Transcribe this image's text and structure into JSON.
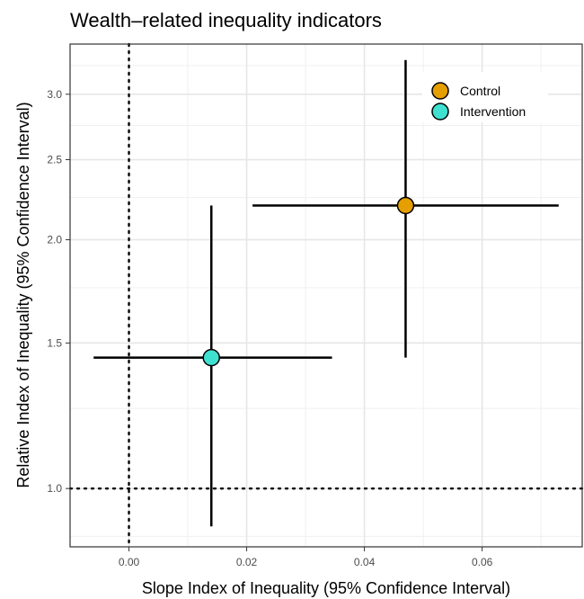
{
  "chart_data": {
    "type": "scatter",
    "title": "Wealth–related inequality indicators",
    "xlabel": "Slope Index of Inequality (95% Confidence Interval)",
    "ylabel": "Relative Index of Inequality (95% Confidence Interval)",
    "xlim": [
      -0.01,
      0.077
    ],
    "ylim": [
      0.85,
      3.45
    ],
    "y_scale": "log",
    "x_ticks": [
      0.0,
      0.02,
      0.04,
      0.06
    ],
    "x_tick_labels": [
      "0.00",
      "0.02",
      "0.04",
      "0.06"
    ],
    "y_ticks": [
      1.0,
      1.5,
      2.0,
      2.5,
      3.0
    ],
    "y_tick_labels": [
      "1.0",
      "1.5",
      "2.0",
      "2.5",
      "3.0"
    ],
    "reference_lines": {
      "x": 0,
      "y": 1
    },
    "grid": true,
    "legend_position": "top-right",
    "series": [
      {
        "name": "Control",
        "color": "#E69F00",
        "x": 0.047,
        "x_low": 0.021,
        "x_high": 0.073,
        "y": 2.2,
        "y_low": 1.44,
        "y_high": 3.3
      },
      {
        "name": "Intervention",
        "color": "#40E0D0",
        "x": 0.014,
        "x_low": -0.006,
        "x_high": 0.0345,
        "y": 1.44,
        "y_low": 0.9,
        "y_high": 2.2
      }
    ]
  }
}
